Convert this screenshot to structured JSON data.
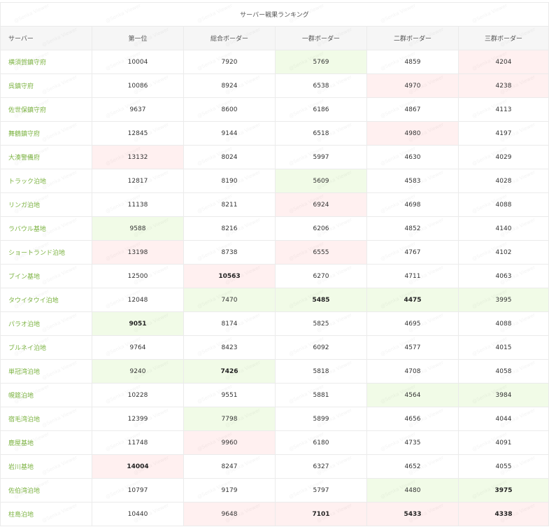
{
  "title": "サーバー戦果ランキング",
  "headers": [
    "サーバー",
    "第一位",
    "総合ボーダー",
    "一群ボーダー",
    "二群ボーダー",
    "三群ボーダー"
  ],
  "watermark_text": "@Senka Viewer",
  "colors": {
    "server_text": "#7cb342",
    "best_bg": "#f1fbe7",
    "worst_bg": "#fff0f0",
    "header_bg": "#f6f6f6"
  },
  "rows": [
    {
      "server": "横須賀鎮守府",
      "values": [
        "10004",
        "7920",
        "5769",
        "4859",
        "4204"
      ],
      "hl": [
        "",
        "",
        "best",
        "",
        "worst"
      ],
      "bold": [
        false,
        false,
        false,
        false,
        false
      ]
    },
    {
      "server": "呉鎮守府",
      "values": [
        "10086",
        "8924",
        "6538",
        "4970",
        "4238"
      ],
      "hl": [
        "",
        "",
        "",
        "worst",
        "worst"
      ],
      "bold": [
        false,
        false,
        false,
        false,
        false
      ]
    },
    {
      "server": "佐世保鎮守府",
      "values": [
        "9637",
        "8600",
        "6186",
        "4867",
        "4113"
      ],
      "hl": [
        "",
        "",
        "",
        "",
        ""
      ],
      "bold": [
        false,
        false,
        false,
        false,
        false
      ]
    },
    {
      "server": "舞鶴鎮守府",
      "values": [
        "12845",
        "9144",
        "6518",
        "4980",
        "4197"
      ],
      "hl": [
        "",
        "",
        "",
        "worst",
        ""
      ],
      "bold": [
        false,
        false,
        false,
        false,
        false
      ]
    },
    {
      "server": "大湊警備府",
      "values": [
        "13132",
        "8024",
        "5997",
        "4630",
        "4029"
      ],
      "hl": [
        "worst",
        "",
        "",
        "",
        ""
      ],
      "bold": [
        false,
        false,
        false,
        false,
        false
      ]
    },
    {
      "server": "トラック泊地",
      "values": [
        "12817",
        "8190",
        "5609",
        "4583",
        "4028"
      ],
      "hl": [
        "",
        "",
        "best",
        "",
        ""
      ],
      "bold": [
        false,
        false,
        false,
        false,
        false
      ]
    },
    {
      "server": "リンガ泊地",
      "values": [
        "11138",
        "8211",
        "6924",
        "4698",
        "4088"
      ],
      "hl": [
        "",
        "",
        "worst",
        "",
        ""
      ],
      "bold": [
        false,
        false,
        false,
        false,
        false
      ]
    },
    {
      "server": "ラバウル基地",
      "values": [
        "9588",
        "8216",
        "6206",
        "4852",
        "4140"
      ],
      "hl": [
        "best",
        "",
        "",
        "",
        ""
      ],
      "bold": [
        false,
        false,
        false,
        false,
        false
      ]
    },
    {
      "server": "ショートランド泊地",
      "values": [
        "13198",
        "8738",
        "6555",
        "4767",
        "4102"
      ],
      "hl": [
        "worst",
        "",
        "worst",
        "",
        ""
      ],
      "bold": [
        false,
        false,
        false,
        false,
        false
      ]
    },
    {
      "server": "ブイン基地",
      "values": [
        "12500",
        "10563",
        "6270",
        "4711",
        "4063"
      ],
      "hl": [
        "",
        "worst",
        "",
        "",
        ""
      ],
      "bold": [
        false,
        true,
        false,
        false,
        false
      ]
    },
    {
      "server": "タウイタウイ泊地",
      "values": [
        "12048",
        "7470",
        "5485",
        "4475",
        "3995"
      ],
      "hl": [
        "",
        "best",
        "best",
        "best",
        "best"
      ],
      "bold": [
        false,
        false,
        true,
        true,
        false
      ]
    },
    {
      "server": "パラオ泊地",
      "values": [
        "9051",
        "8174",
        "5825",
        "4695",
        "4088"
      ],
      "hl": [
        "best",
        "",
        "",
        "",
        ""
      ],
      "bold": [
        true,
        false,
        false,
        false,
        false
      ]
    },
    {
      "server": "ブルネイ泊地",
      "values": [
        "9764",
        "8423",
        "6092",
        "4577",
        "4015"
      ],
      "hl": [
        "",
        "",
        "",
        "",
        ""
      ],
      "bold": [
        false,
        false,
        false,
        false,
        false
      ]
    },
    {
      "server": "単冠湾泊地",
      "values": [
        "9240",
        "7426",
        "5818",
        "4708",
        "4058"
      ],
      "hl": [
        "best",
        "best",
        "",
        "",
        ""
      ],
      "bold": [
        false,
        true,
        false,
        false,
        false
      ]
    },
    {
      "server": "幌筵泊地",
      "values": [
        "10228",
        "9551",
        "5881",
        "4564",
        "3984"
      ],
      "hl": [
        "",
        "",
        "",
        "best",
        "best"
      ],
      "bold": [
        false,
        false,
        false,
        false,
        false
      ]
    },
    {
      "server": "宿毛湾泊地",
      "values": [
        "12399",
        "7798",
        "5899",
        "4656",
        "4044"
      ],
      "hl": [
        "",
        "best",
        "",
        "",
        ""
      ],
      "bold": [
        false,
        false,
        false,
        false,
        false
      ]
    },
    {
      "server": "鹿屋基地",
      "values": [
        "11748",
        "9960",
        "6180",
        "4735",
        "4091"
      ],
      "hl": [
        "",
        "worst",
        "",
        "",
        ""
      ],
      "bold": [
        false,
        false,
        false,
        false,
        false
      ]
    },
    {
      "server": "岩川基地",
      "values": [
        "14004",
        "8247",
        "6327",
        "4652",
        "4055"
      ],
      "hl": [
        "worst",
        "",
        "",
        "",
        ""
      ],
      "bold": [
        true,
        false,
        false,
        false,
        false
      ]
    },
    {
      "server": "佐伯湾泊地",
      "values": [
        "10797",
        "9179",
        "5797",
        "4480",
        "3975"
      ],
      "hl": [
        "",
        "",
        "",
        "best",
        "best"
      ],
      "bold": [
        false,
        false,
        false,
        false,
        true
      ]
    },
    {
      "server": "柱島泊地",
      "values": [
        "10440",
        "9648",
        "7101",
        "5433",
        "4338"
      ],
      "hl": [
        "",
        "worst",
        "worst",
        "worst",
        "worst"
      ],
      "bold": [
        false,
        false,
        true,
        true,
        true
      ]
    }
  ]
}
